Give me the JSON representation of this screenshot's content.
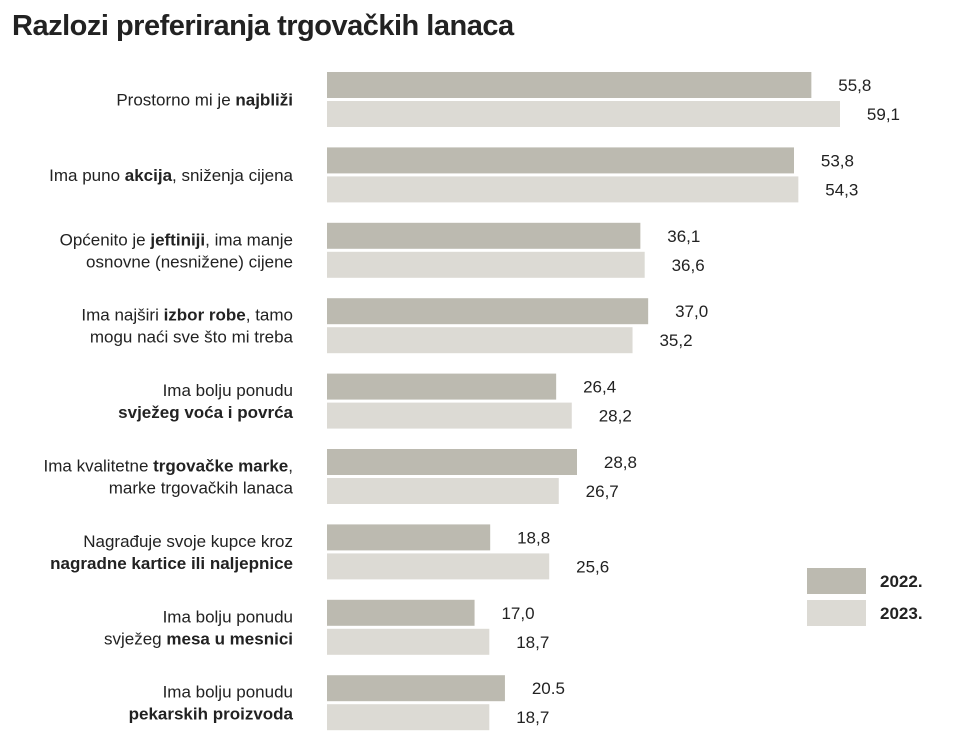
{
  "chart_data": {
    "type": "bar",
    "orientation": "horizontal",
    "title": "Razlozi preferiranja trgovačkih lanaca",
    "categories": [
      [
        {
          "text": "Prostorno mi je "
        },
        {
          "text": "najbliži",
          "bold": true
        }
      ],
      [
        {
          "text": "Ima puno "
        },
        {
          "text": "akcija",
          "bold": true
        },
        {
          "text": ", sniženja cijena"
        }
      ],
      [
        {
          "text": "Općenito je "
        },
        {
          "text": "jeftiniji",
          "bold": true
        },
        {
          "text": ", ima manje"
        },
        {
          "br": true
        },
        {
          "text": "osnovne (nesnižene) cijene"
        }
      ],
      [
        {
          "text": "Ima najširi "
        },
        {
          "text": "izbor robe",
          "bold": true
        },
        {
          "text": ", tamo"
        },
        {
          "br": true
        },
        {
          "text": "mogu naći sve što mi treba"
        }
      ],
      [
        {
          "text": "Ima bolju ponudu"
        },
        {
          "br": true
        },
        {
          "text": "svježeg voća i povrća",
          "bold": true
        }
      ],
      [
        {
          "text": "Ima kvalitetne "
        },
        {
          "text": "trgovačke marke",
          "bold": true
        },
        {
          "text": ","
        },
        {
          "br": true
        },
        {
          "text": "marke trgovačkih lanaca"
        }
      ],
      [
        {
          "text": "Nagrađuje svoje kupce kroz"
        },
        {
          "br": true
        },
        {
          "text": "nagradne kartice ili naljepnice",
          "bold": true
        }
      ],
      [
        {
          "text": "Ima bolju ponudu"
        },
        {
          "br": true
        },
        {
          "text": "svježeg "
        },
        {
          "text": "mesa u mesnici",
          "bold": true
        }
      ],
      [
        {
          "text": "Ima bolju ponudu"
        },
        {
          "br": true
        },
        {
          "text": "pekarskih proizvoda",
          "bold": true
        }
      ]
    ],
    "series": [
      {
        "name": "2022.",
        "color": "#bcbab0",
        "values": [
          55.8,
          53.8,
          36.1,
          37.0,
          26.4,
          28.8,
          18.8,
          17.0,
          20.5
        ],
        "labels": [
          "55,8",
          "53,8",
          "36,1",
          "37,0",
          "26,4",
          "28,8",
          "18,8",
          "17,0",
          "20.5"
        ]
      },
      {
        "name": "2023.",
        "color": "#dcdad4",
        "values": [
          59.1,
          54.3,
          36.6,
          35.2,
          28.2,
          26.7,
          25.6,
          18.7,
          18.7
        ],
        "labels": [
          "59,1",
          "54,3",
          "36,6",
          "35,2",
          "28,2",
          "26,7",
          "25,6",
          "18,7",
          "18,7"
        ]
      }
    ],
    "xlim": [
      0,
      59.1
    ],
    "grid": false,
    "legend": "bottom-right"
  }
}
